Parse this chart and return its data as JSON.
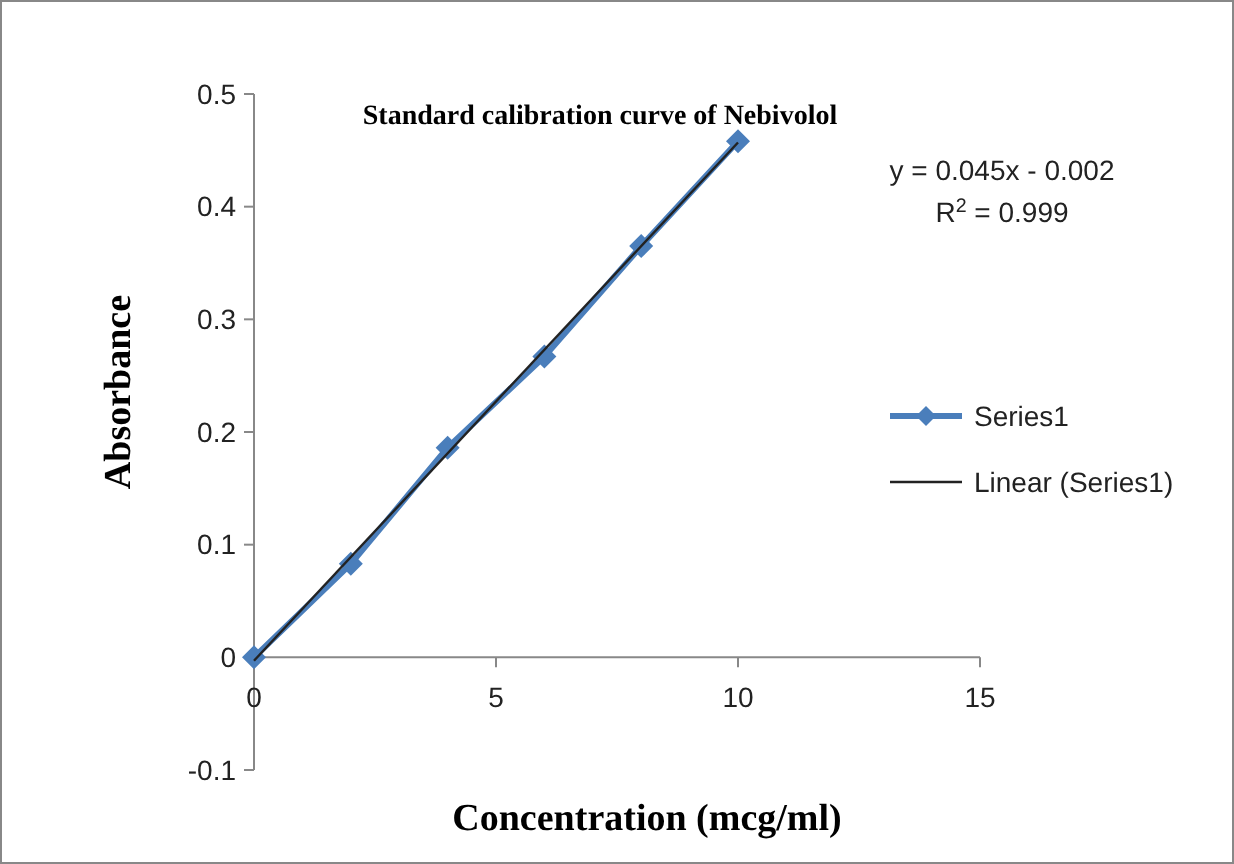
{
  "chart_data": {
    "type": "line",
    "title": "Standard calibration curve of Nebivolol",
    "xlabel": "Concentration (mcg/ml)",
    "ylabel": "Absorbance",
    "x": [
      0,
      2,
      4,
      6,
      8,
      10
    ],
    "series": [
      {
        "name": "Series1",
        "color": "#4a7ebb",
        "values": [
          0,
          0.083,
          0.186,
          0.267,
          0.365,
          0.458
        ],
        "marker": "diamond"
      },
      {
        "name": "Linear (Series1)",
        "color": "#222222",
        "x": [
          0,
          10
        ],
        "values": [
          -0.003,
          0.457
        ],
        "marker": "none"
      }
    ],
    "xlim": [
      0,
      15
    ],
    "xticks": [
      0,
      5,
      10,
      15
    ],
    "ylim": [
      -0.1,
      0.5
    ],
    "yticks": [
      -0.1,
      0,
      0.1,
      0.2,
      0.3,
      0.4,
      0.5
    ],
    "grid": false,
    "legend": "right",
    "annotations": [
      "y = 0.045x - 0.002",
      "R$^{2}$ = 0.999"
    ]
  }
}
